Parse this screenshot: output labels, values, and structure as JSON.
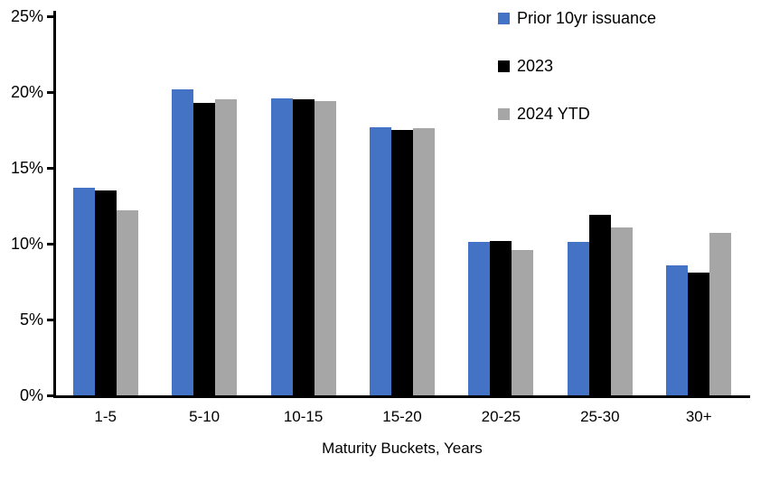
{
  "chart_data": {
    "type": "bar",
    "title": "",
    "categories": [
      "1-5",
      "5-10",
      "10-15",
      "15-20",
      "20-25",
      "25-30",
      "30+"
    ],
    "series": [
      {
        "name": "Prior 10yr issuance",
        "color": "#4472C4",
        "values": [
          13.7,
          20.2,
          19.6,
          17.7,
          10.1,
          10.1,
          8.6
        ]
      },
      {
        "name": "2023",
        "color": "#000000",
        "values": [
          13.5,
          19.3,
          19.5,
          17.5,
          10.2,
          11.9,
          8.1
        ]
      },
      {
        "name": "2024 YTD",
        "color": "#A6A6A6",
        "values": [
          12.2,
          19.5,
          19.4,
          17.6,
          9.6,
          11.1,
          10.7
        ]
      }
    ],
    "xlabel": "Maturity Buckets, Years",
    "ylabel": "",
    "ylim": [
      0,
      25
    ],
    "ytick_step": 5,
    "ytick_labels": [
      "0%",
      "5%",
      "10%",
      "15%",
      "20%",
      "25%"
    ],
    "legend_position": "top-right",
    "grid": false,
    "axis_color": "#000000",
    "background_color": "#ffffff"
  }
}
